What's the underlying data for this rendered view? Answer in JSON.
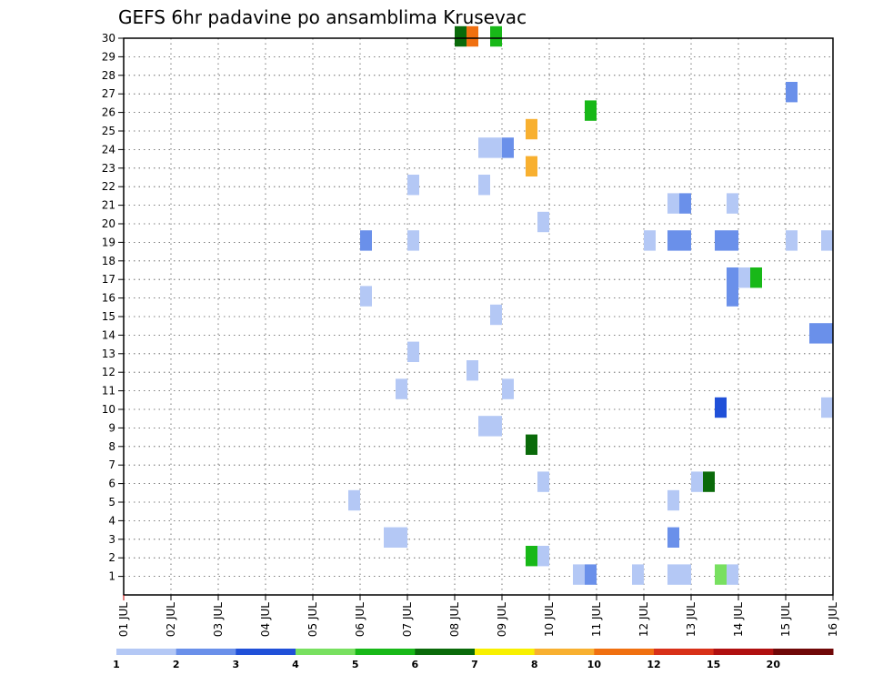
{
  "chart_data": {
    "type": "heatmap",
    "title": "GEFS 6hr padavine po ansamblima Krusevac",
    "xlabel": "",
    "ylabel": "",
    "x_tick_labels": [
      "01 JUL",
      "02 JUL",
      "03 JUL",
      "04 JUL",
      "05 JUL",
      "06 JUL",
      "07 JUL",
      "08 JUL",
      "09 JUL",
      "10 JUL",
      "11 JUL",
      "12 JUL",
      "13 JUL",
      "14 JUL",
      "15 JUL",
      "16 JUL"
    ],
    "y_tick_labels": [
      "1",
      "2",
      "3",
      "4",
      "5",
      "6",
      "7",
      "8",
      "9",
      "10",
      "11",
      "12",
      "13",
      "14",
      "15",
      "16",
      "17",
      "18",
      "19",
      "20",
      "21",
      "22",
      "23",
      "24",
      "25",
      "26",
      "27",
      "28",
      "29",
      "30"
    ],
    "x_range_days": [
      1,
      16
    ],
    "y_range_members": [
      0,
      30
    ],
    "grid": true,
    "colorbar": {
      "placement": "bottom",
      "labels": [
        "1",
        "2",
        "3",
        "4",
        "5",
        "6",
        "7",
        "8",
        "10",
        "12",
        "15",
        "20"
      ],
      "colors": [
        "#b4c8f5",
        "#6a90ea",
        "#2050d8",
        "#78e060",
        "#18b818",
        "#0a6a0a",
        "#f8f000",
        "#f8b030",
        "#f07010",
        "#d83018",
        "#b01010",
        "#700808"
      ]
    },
    "cells": [
      {
        "member": 30,
        "day": 8.0,
        "span": 0.25,
        "color": "#0a6a0a"
      },
      {
        "member": 30,
        "day": 8.25,
        "span": 0.25,
        "color": "#f07010"
      },
      {
        "member": 30,
        "day": 8.75,
        "span": 0.25,
        "color": "#18b818"
      },
      {
        "member": 27,
        "day": 15.0,
        "span": 0.25,
        "color": "#6a90ea"
      },
      {
        "member": 26,
        "day": 10.75,
        "span": 0.25,
        "color": "#18b818"
      },
      {
        "member": 25,
        "day": 9.5,
        "span": 0.25,
        "color": "#f8b030"
      },
      {
        "member": 24,
        "day": 8.5,
        "span": 0.5,
        "color": "#b4c8f5"
      },
      {
        "member": 24,
        "day": 9.0,
        "span": 0.25,
        "color": "#6a90ea"
      },
      {
        "member": 23,
        "day": 9.5,
        "span": 0.25,
        "color": "#f8b030"
      },
      {
        "member": 22,
        "day": 7.0,
        "span": 0.25,
        "color": "#b4c8f5"
      },
      {
        "member": 22,
        "day": 8.5,
        "span": 0.25,
        "color": "#b4c8f5"
      },
      {
        "member": 21,
        "day": 12.5,
        "span": 0.25,
        "color": "#b4c8f5"
      },
      {
        "member": 21,
        "day": 12.75,
        "span": 0.25,
        "color": "#6a90ea"
      },
      {
        "member": 21,
        "day": 13.75,
        "span": 0.25,
        "color": "#b4c8f5"
      },
      {
        "member": 20,
        "day": 9.75,
        "span": 0.25,
        "color": "#b4c8f5"
      },
      {
        "member": 19,
        "day": 6.0,
        "span": 0.25,
        "color": "#6a90ea"
      },
      {
        "member": 19,
        "day": 7.0,
        "span": 0.25,
        "color": "#b4c8f5"
      },
      {
        "member": 19,
        "day": 12.0,
        "span": 0.25,
        "color": "#b4c8f5"
      },
      {
        "member": 19,
        "day": 12.5,
        "span": 0.5,
        "color": "#6a90ea"
      },
      {
        "member": 19,
        "day": 13.5,
        "span": 0.5,
        "color": "#6a90ea"
      },
      {
        "member": 19,
        "day": 15.0,
        "span": 0.25,
        "color": "#b4c8f5"
      },
      {
        "member": 19,
        "day": 15.75,
        "span": 0.25,
        "color": "#b4c8f5"
      },
      {
        "member": 17,
        "day": 14.0,
        "span": 0.25,
        "color": "#b4c8f5"
      },
      {
        "member": 17,
        "day": 14.25,
        "span": 0.25,
        "color": "#18b818"
      },
      {
        "member": 17,
        "day": 13.75,
        "span": 0.25,
        "color": "#6a90ea"
      },
      {
        "member": 16,
        "day": 13.75,
        "span": 0.25,
        "color": "#6a90ea"
      },
      {
        "member": 16,
        "day": 6.0,
        "span": 0.25,
        "color": "#b4c8f5"
      },
      {
        "member": 15,
        "day": 8.75,
        "span": 0.25,
        "color": "#b4c8f5"
      },
      {
        "member": 14,
        "day": 15.5,
        "span": 0.5,
        "color": "#6a90ea"
      },
      {
        "member": 13,
        "day": 7.0,
        "span": 0.25,
        "color": "#b4c8f5"
      },
      {
        "member": 12,
        "day": 8.25,
        "span": 0.25,
        "color": "#b4c8f5"
      },
      {
        "member": 11,
        "day": 6.75,
        "span": 0.25,
        "color": "#b4c8f5"
      },
      {
        "member": 11,
        "day": 9.0,
        "span": 0.25,
        "color": "#b4c8f5"
      },
      {
        "member": 10,
        "day": 13.5,
        "span": 0.25,
        "color": "#2050d8"
      },
      {
        "member": 10,
        "day": 15.75,
        "span": 0.25,
        "color": "#b4c8f5"
      },
      {
        "member": 9,
        "day": 8.5,
        "span": 0.5,
        "color": "#b4c8f5"
      },
      {
        "member": 8,
        "day": 9.5,
        "span": 0.25,
        "color": "#0a6a0a"
      },
      {
        "member": 6,
        "day": 9.75,
        "span": 0.25,
        "color": "#b4c8f5"
      },
      {
        "member": 6,
        "day": 13.0,
        "span": 0.25,
        "color": "#b4c8f5"
      },
      {
        "member": 6,
        "day": 13.25,
        "span": 0.25,
        "color": "#0a6a0a"
      },
      {
        "member": 5,
        "day": 5.75,
        "span": 0.25,
        "color": "#b4c8f5"
      },
      {
        "member": 5,
        "day": 12.5,
        "span": 0.25,
        "color": "#b4c8f5"
      },
      {
        "member": 3,
        "day": 6.5,
        "span": 0.5,
        "color": "#b4c8f5"
      },
      {
        "member": 3,
        "day": 12.5,
        "span": 0.25,
        "color": "#6a90ea"
      },
      {
        "member": 2,
        "day": 9.5,
        "span": 0.25,
        "color": "#18b818"
      },
      {
        "member": 2,
        "day": 9.75,
        "span": 0.25,
        "color": "#b4c8f5"
      },
      {
        "member": 1,
        "day": 10.5,
        "span": 0.25,
        "color": "#b4c8f5"
      },
      {
        "member": 1,
        "day": 10.75,
        "span": 0.25,
        "color": "#6a90ea"
      },
      {
        "member": 1,
        "day": 11.75,
        "span": 0.25,
        "color": "#b4c8f5"
      },
      {
        "member": 1,
        "day": 12.5,
        "span": 0.5,
        "color": "#b4c8f5"
      },
      {
        "member": 1,
        "day": 13.5,
        "span": 0.25,
        "color": "#78e060"
      },
      {
        "member": 1,
        "day": 13.75,
        "span": 0.25,
        "color": "#b4c8f5"
      }
    ]
  }
}
